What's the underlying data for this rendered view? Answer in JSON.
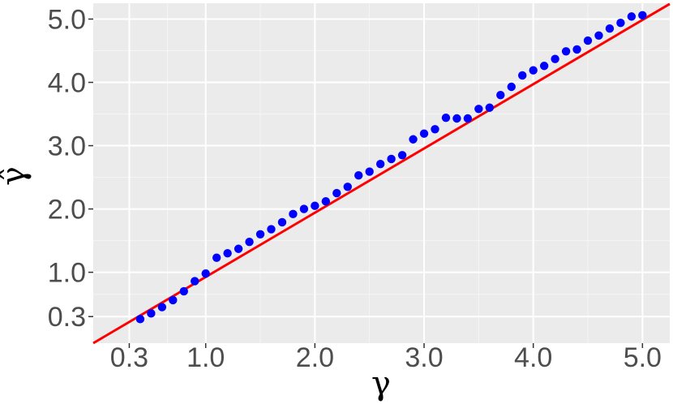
{
  "chart_data": {
    "type": "scatter",
    "title": "",
    "xlabel": "γ",
    "ylabel": "γ̂",
    "xlim": [
      -0.03,
      5.25
    ],
    "ylim": [
      -0.12,
      5.25
    ],
    "x_ticks": [
      0.3,
      1.0,
      2.0,
      3.0,
      4.0,
      5.0
    ],
    "x_tick_labels": [
      "0.3",
      "1.0",
      "2.0",
      "3.0",
      "4.0",
      "5.0"
    ],
    "y_ticks": [
      0.3,
      1.0,
      2.0,
      3.0,
      4.0,
      5.0
    ],
    "y_tick_labels": [
      "0.3",
      "1.0",
      "2.0",
      "3.0",
      "4.0",
      "5.0"
    ],
    "grid": true,
    "series": [
      {
        "kind": "points",
        "color": "#0000ff",
        "x": [
          0.4,
          0.5,
          0.6,
          0.7,
          0.8,
          0.9,
          1.0,
          1.1,
          1.2,
          1.3,
          1.4,
          1.5,
          1.6,
          1.7,
          1.8,
          1.9,
          2.0,
          2.1,
          2.2,
          2.3,
          2.4,
          2.5,
          2.6,
          2.7,
          2.8,
          2.9,
          3.0,
          3.1,
          3.2,
          3.3,
          3.4,
          3.5,
          3.6,
          3.7,
          3.8,
          3.9,
          4.0,
          4.1,
          4.2,
          4.3,
          4.4,
          4.5,
          4.6,
          4.7,
          4.8,
          4.9,
          5.0
        ],
        "y": [
          0.26,
          0.35,
          0.45,
          0.56,
          0.7,
          0.86,
          0.98,
          1.23,
          1.3,
          1.37,
          1.48,
          1.6,
          1.68,
          1.79,
          1.92,
          2.0,
          2.05,
          2.12,
          2.25,
          2.35,
          2.53,
          2.59,
          2.71,
          2.79,
          2.85,
          3.1,
          3.19,
          3.26,
          3.44,
          3.43,
          3.43,
          3.58,
          3.6,
          3.8,
          3.93,
          4.11,
          4.19,
          4.26,
          4.37,
          4.49,
          4.52,
          4.66,
          4.74,
          4.85,
          4.94,
          5.04,
          5.06
        ]
      },
      {
        "kind": "line",
        "color": "#ff0000",
        "x": [
          -0.03,
          5.25
        ],
        "y": [
          -0.12,
          5.24
        ]
      }
    ]
  }
}
